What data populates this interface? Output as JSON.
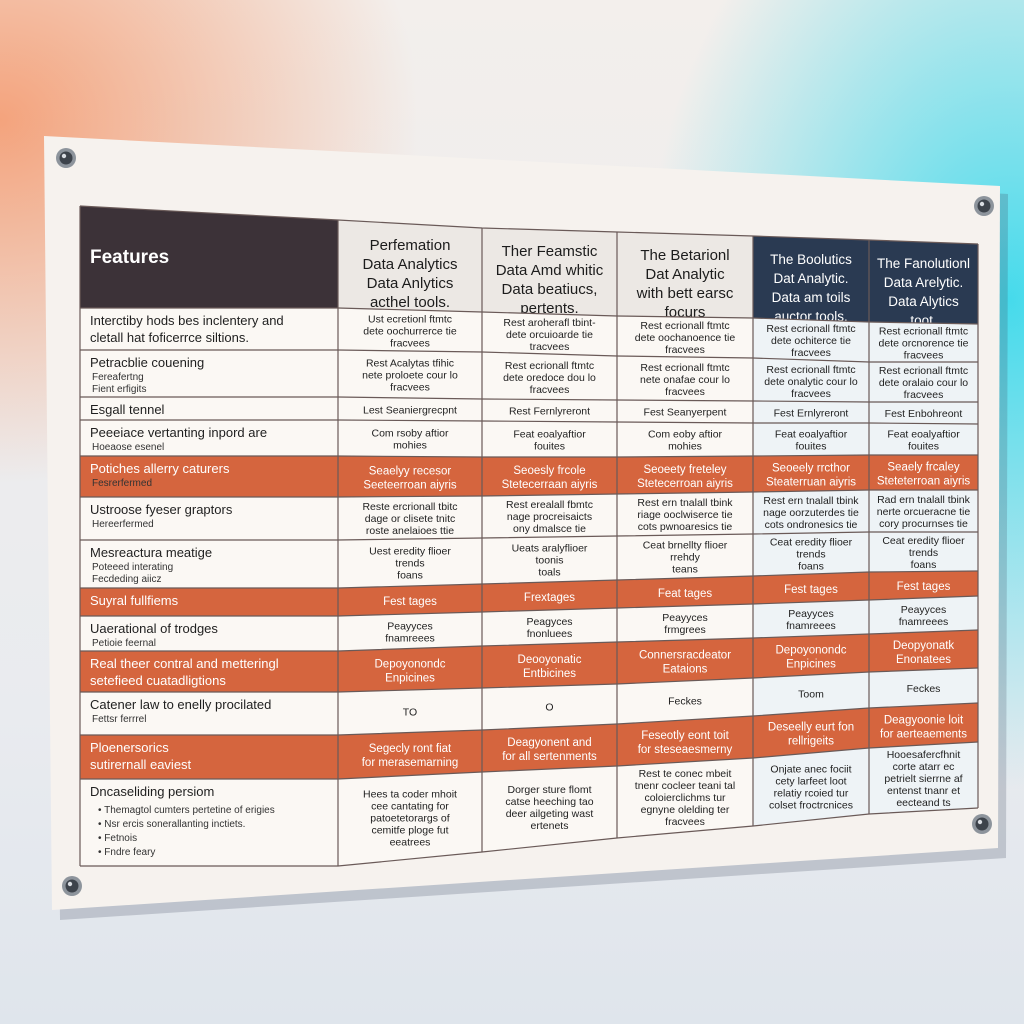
{
  "table": {
    "feature_header": "Features",
    "columns": [
      [
        "Perfemation",
        "Data Analytics",
        "Data Anlytics",
        "acthel tools."
      ],
      [
        "Ther Feamstic",
        "Data Amd whitic",
        "Data beatiucs,",
        "pertents."
      ],
      [
        "The Betarionl",
        "Dat Analytic",
        "with bett earsc",
        "focurs"
      ],
      [
        "The Boolutics",
        "Dat Analytic.",
        "Data am toils",
        "auctor tools."
      ],
      [
        "The Fanolutionl",
        "Data Arelytic.",
        "Data Alytics",
        "toot."
      ]
    ],
    "rows": [
      {
        "feature": [
          "Interctiby hods bes inclentery and",
          "cletall hat foficerrce siltions."
        ],
        "cells": [
          [
            "Ust ecretionl ftmtc",
            "dete oochurrerce tie",
            "fracvees"
          ],
          [
            "Rest aroherafl tbint-",
            "dete orcuioarde tie",
            "tracvees"
          ],
          [
            "Rest ecrionall ftmtc",
            "dete oochanoence tie",
            "fracvees"
          ],
          [
            "Rest ecrionall ftmtc",
            "dete ochiterce tie",
            "fracvees"
          ],
          [
            "Rest ecrionall ftmtc",
            "dete orcnorence tie",
            "fracvees"
          ]
        ]
      },
      {
        "feature": [
          "Petracblie couening"
        ],
        "sub": [
          "Fereafertng",
          "Fient erfigits"
        ],
        "cells": [
          [
            "Rest Acalytas tfihic",
            "nete proloete cour lo",
            "fracvees"
          ],
          [
            "Rest ecrionall ftmtc",
            "dete oredoce dou lo",
            "fracvees"
          ],
          [
            "Rest ecrionall ftmtc",
            "nete onafae cour lo",
            "fracvees"
          ],
          [
            "Rest ecrionall ftmtc",
            "dete onalytic cour lo",
            "fracvees"
          ],
          [
            "Rest ecrionall ftmtc",
            "dete oralaio cour lo",
            "fracvees"
          ]
        ]
      },
      {
        "feature": [
          "Esgall tennel"
        ],
        "cells": [
          [
            "Lest Seaniergrecpnt"
          ],
          [
            "Rest Fernlyreront"
          ],
          [
            "Fest Seanyerpent"
          ],
          [
            "Fest Ernlyreront"
          ],
          [
            "Fest Enbohreont"
          ]
        ]
      },
      {
        "feature": [
          "Peeeiace vertanting inpord are"
        ],
        "sub": [
          "Hoeaose esenel"
        ],
        "cells": [
          [
            "Com rsoby aftior",
            "mohies"
          ],
          [
            "Feat eoalyaftior",
            "fouites"
          ],
          [
            "Com eoby aftior",
            "mohies"
          ],
          [
            "Feat eoalyaftior",
            "fouites"
          ],
          [
            "Feat eoalyaftior",
            "fouites"
          ]
        ]
      },
      {
        "feature": [
          "Potiches allerry caturers"
        ],
        "sub": [
          "Fesrerfermed"
        ],
        "orange": true,
        "cells": [
          [
            "Seaelyy recesor",
            "Seeteerroan aiyris"
          ],
          [
            "Seoesly frcole",
            "Stetecerraan aiyris"
          ],
          [
            "Seoeety freteley",
            "Stetecerroan aiyris"
          ],
          [
            "Seoeely rrcthor",
            "Steaterruan aiyris"
          ],
          [
            "Seaely frcaley",
            "Steteterroan aiyris"
          ]
        ]
      },
      {
        "feature": [
          "Ustroose fyeser graptors"
        ],
        "sub": [
          "Hereerfermed"
        ],
        "cells": [
          [
            "Reste ercrionall tbitc",
            "dage or clisete tnitc",
            "roste anelaioes ttie"
          ],
          [
            "Rest erealall fbmtc",
            "nage procreisaicts",
            "ony dmalsce tie"
          ],
          [
            "Rest ern tnalall tbink",
            "riage ooclwiserce tie",
            "cots pwnoaresics tie"
          ],
          [
            "Rest ern tnalall tbink",
            "nage oorzuterdes tie",
            "cots ondronesics tie"
          ],
          [
            "Rad ern tnalall tbink",
            "nerte orcueracne tie",
            "cory procurnses tie"
          ]
        ]
      },
      {
        "feature": [
          "Mesreactura meatige"
        ],
        "sub": [
          "Poteeed interating",
          "Fecdeding aiicz"
        ],
        "cells": [
          [
            "Uest eredity flioer",
            "trends",
            "foans"
          ],
          [
            "Ueats aralyflioer",
            "toonis",
            "toals"
          ],
          [
            "Ceat brnellty flioer",
            "rrehdy",
            "teans"
          ],
          [
            "Ceat eredity flioer",
            "trends",
            "foans"
          ],
          [
            "Ceat eredity flioer",
            "trends",
            "foans"
          ]
        ]
      },
      {
        "feature": [
          "Suyral fullfiems"
        ],
        "orange": true,
        "cells": [
          [
            "Fest tages"
          ],
          [
            "Frextages"
          ],
          [
            "Feat tages"
          ],
          [
            "Fest tages"
          ],
          [
            "Fest tages"
          ]
        ]
      },
      {
        "feature": [
          "Uaerational of trodges"
        ],
        "sub": [
          "Petioie feernal"
        ],
        "cells": [
          [
            "Peayyces",
            "fnamreees"
          ],
          [
            "Peagyces",
            "fnonluees"
          ],
          [
            "Peayyces",
            "frmgrees"
          ],
          [
            "Peayyces",
            "fnamreees"
          ],
          [
            "Peayyces",
            "fnamreees"
          ]
        ]
      },
      {
        "feature": [
          "Real theer contral and metteringl",
          "setefieed cuatadligtions"
        ],
        "orange": true,
        "cells": [
          [
            "Depoyonondc",
            "Enpicines"
          ],
          [
            "Deooyonatic",
            "Entbicines"
          ],
          [
            "Connersracdeator",
            "Eataions"
          ],
          [
            "Depoyonondc",
            "Enpicines"
          ],
          [
            "Deopyonatk",
            "Enonatees"
          ]
        ]
      },
      {
        "feature": [
          "Catener law to enelly procilated"
        ],
        "sub": [
          "Fettsr ferrrel"
        ],
        "cells": [
          [
            "TO"
          ],
          [
            "O"
          ],
          [
            "Feckes"
          ],
          [
            "Toom"
          ],
          [
            "Feckes"
          ]
        ]
      },
      {
        "feature": [
          "Ploenersorics",
          "sutirernall eaviest"
        ],
        "orange": true,
        "cells": [
          [
            "Segecly ront fiat",
            "for merasemarning"
          ],
          [
            "Deagyonent and",
            "for all sertenments"
          ],
          [
            "Feseotly eont toit",
            "for steseaesmerny"
          ],
          [
            "Deseelly eurt fon",
            "rellrigeits"
          ],
          [
            "Deagyoonie loit",
            "for aerteaements"
          ]
        ]
      },
      {
        "feature": [
          "Dncaseliding persiom"
        ],
        "bullets": [
          "Themagtol cumters pertetine of erigies",
          "Nsr ercis sonerallanting inctiets.",
          "Fetnois",
          "Fndre feary"
        ],
        "cells": [
          [
            "Hees ta coder mhoit",
            "cee cantating for",
            "patoetetorargs of",
            "cemitfe ploge fut",
            "eeatrees"
          ],
          [
            "Dorger sture flomt",
            "catse heeching tao",
            "deer ailgeting wast",
            "ertenets"
          ],
          [
            "Rest te conec mbeit",
            "tnenr cocleer teani tal",
            "coloierclichms tur",
            "egnyne olelding ter",
            "fracvees"
          ],
          [
            "Onjate anec fociit",
            "cety larfeet loot",
            "relatiy rcoied tur",
            "colset froctrcnices"
          ],
          [
            "Hooesafercfhnit",
            "corte atarr ec",
            "petrielt sierrne af",
            "entenst tnanr et",
            "eecteand ts"
          ]
        ]
      }
    ]
  }
}
